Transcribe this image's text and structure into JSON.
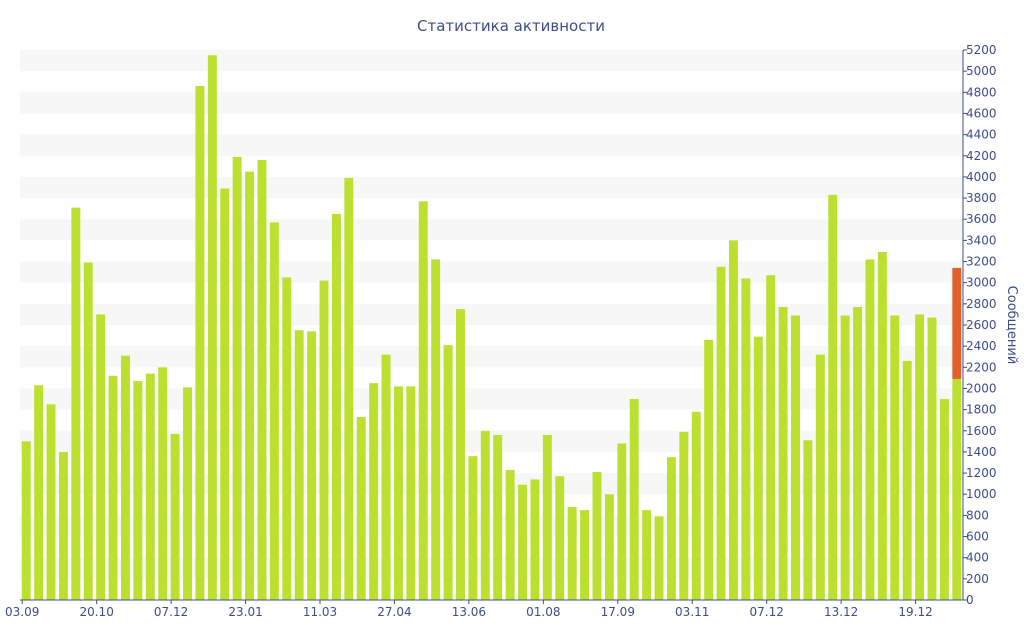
{
  "colors": {
    "bar": "#bce030",
    "highlight": "#e2612b",
    "band": "#f7f7f7",
    "axis": "#3d4e8a"
  },
  "chart_data": {
    "type": "bar",
    "title": "Статистика активности",
    "xlabel": "",
    "ylabel": "Сообщений",
    "ylim": [
      0,
      5200
    ],
    "ytick_step": 200,
    "x_tick_labels": [
      {
        "index": 0,
        "label": "03.09"
      },
      {
        "index": 6,
        "label": "20.10"
      },
      {
        "index": 12,
        "label": "07.12"
      },
      {
        "index": 18,
        "label": "23.01"
      },
      {
        "index": 24,
        "label": "11.03"
      },
      {
        "index": 30,
        "label": "27.04"
      },
      {
        "index": 36,
        "label": "13.06"
      },
      {
        "index": 42,
        "label": "01.08"
      },
      {
        "index": 48,
        "label": "17.09"
      },
      {
        "index": 54,
        "label": "03.11"
      },
      {
        "index": 60,
        "label": "07.12"
      },
      {
        "index": 66,
        "label": "13.12"
      },
      {
        "index": 72,
        "label": "19.12"
      }
    ],
    "series": [
      {
        "values": [
          1500,
          2030,
          1850,
          1400,
          3710,
          3190,
          2700,
          2120,
          2310,
          2070,
          2140,
          2200,
          1570,
          2010,
          4860,
          5150,
          3890,
          4190,
          4050,
          4160,
          3570,
          3050,
          2550,
          2540,
          3020,
          3650,
          3990,
          1730,
          2050,
          2320,
          2020,
          2020,
          3770,
          3220,
          2410,
          2750,
          1360,
          1600,
          1560,
          1230,
          1090,
          1140,
          1560,
          1170,
          880,
          850,
          1210,
          1000,
          1480,
          1900,
          850,
          790,
          1350,
          1590,
          1780,
          2460,
          3150,
          3400,
          3040,
          2490,
          3070,
          2770,
          2690,
          1510,
          2320,
          3830,
          2690,
          2770,
          3220,
          3290,
          2690,
          2260,
          2700,
          2670,
          1900,
          2090
        ]
      }
    ],
    "highlight": {
      "index": 75,
      "base": 2090,
      "top": 3140
    }
  }
}
